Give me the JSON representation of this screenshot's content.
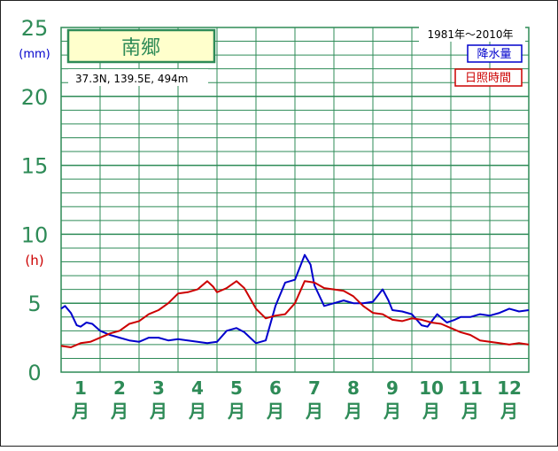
{
  "chart_data": {
    "type": "line",
    "station_name": "南郷",
    "location": "37.3N,  139.5E,  494m",
    "period": "1981年〜2010年",
    "y_unit_precip": "(mm)",
    "y_unit_sunshine": "(h)",
    "ylim": [
      0,
      25
    ],
    "y_ticks": [
      "0",
      "5",
      "10",
      "15",
      "20",
      "25"
    ],
    "x_ticks": [
      {
        "num": "1",
        "unit": "月"
      },
      {
        "num": "2",
        "unit": "月"
      },
      {
        "num": "3",
        "unit": "月"
      },
      {
        "num": "4",
        "unit": "月"
      },
      {
        "num": "5",
        "unit": "月"
      },
      {
        "num": "6",
        "unit": "月"
      },
      {
        "num": "7",
        "unit": "月"
      },
      {
        "num": "8",
        "unit": "月"
      },
      {
        "num": "9",
        "unit": "月"
      },
      {
        "num": "10",
        "unit": "月"
      },
      {
        "num": "11",
        "unit": "月"
      },
      {
        "num": "12",
        "unit": "月"
      }
    ],
    "xlim": [
      0.5,
      12.5
    ],
    "grid": true,
    "legend_position": "top-right",
    "series": [
      {
        "name": "降水量",
        "color": "#0000cc",
        "points": [
          [
            0.5,
            4.6
          ],
          [
            0.6,
            4.8
          ],
          [
            0.75,
            4.3
          ],
          [
            0.9,
            3.4
          ],
          [
            1.0,
            3.3
          ],
          [
            1.15,
            3.6
          ],
          [
            1.3,
            3.5
          ],
          [
            1.5,
            3.0
          ],
          [
            1.75,
            2.7
          ],
          [
            2.0,
            2.5
          ],
          [
            2.25,
            2.3
          ],
          [
            2.5,
            2.2
          ],
          [
            2.75,
            2.5
          ],
          [
            3.0,
            2.5
          ],
          [
            3.25,
            2.3
          ],
          [
            3.5,
            2.4
          ],
          [
            3.75,
            2.3
          ],
          [
            4.0,
            2.2
          ],
          [
            4.25,
            2.1
          ],
          [
            4.5,
            2.2
          ],
          [
            4.75,
            3.0
          ],
          [
            5.0,
            3.2
          ],
          [
            5.2,
            2.9
          ],
          [
            5.5,
            2.1
          ],
          [
            5.75,
            2.3
          ],
          [
            6.0,
            4.8
          ],
          [
            6.25,
            6.5
          ],
          [
            6.5,
            6.7
          ],
          [
            6.75,
            8.5
          ],
          [
            6.9,
            7.8
          ],
          [
            7.0,
            6.3
          ],
          [
            7.25,
            4.8
          ],
          [
            7.5,
            5.0
          ],
          [
            7.75,
            5.2
          ],
          [
            8.0,
            5.0
          ],
          [
            8.25,
            5.0
          ],
          [
            8.5,
            5.1
          ],
          [
            8.75,
            6.0
          ],
          [
            8.9,
            5.2
          ],
          [
            9.0,
            4.5
          ],
          [
            9.25,
            4.4
          ],
          [
            9.5,
            4.2
          ],
          [
            9.75,
            3.4
          ],
          [
            9.9,
            3.3
          ],
          [
            10.15,
            4.2
          ],
          [
            10.4,
            3.6
          ],
          [
            10.6,
            3.8
          ],
          [
            10.75,
            4.0
          ],
          [
            11.0,
            4.0
          ],
          [
            11.25,
            4.2
          ],
          [
            11.5,
            4.1
          ],
          [
            11.75,
            4.3
          ],
          [
            12.0,
            4.6
          ],
          [
            12.25,
            4.4
          ],
          [
            12.5,
            4.5
          ]
        ]
      },
      {
        "name": "日照時間",
        "color": "#cc0000",
        "points": [
          [
            0.5,
            1.9
          ],
          [
            0.75,
            1.8
          ],
          [
            1.0,
            2.1
          ],
          [
            1.25,
            2.2
          ],
          [
            1.5,
            2.5
          ],
          [
            1.75,
            2.8
          ],
          [
            2.0,
            3.0
          ],
          [
            2.25,
            3.5
          ],
          [
            2.5,
            3.7
          ],
          [
            2.75,
            4.2
          ],
          [
            3.0,
            4.5
          ],
          [
            3.25,
            5.0
          ],
          [
            3.5,
            5.7
          ],
          [
            3.75,
            5.8
          ],
          [
            4.0,
            6.0
          ],
          [
            4.25,
            6.6
          ],
          [
            4.4,
            6.2
          ],
          [
            4.5,
            5.8
          ],
          [
            4.75,
            6.1
          ],
          [
            5.0,
            6.6
          ],
          [
            5.2,
            6.1
          ],
          [
            5.5,
            4.6
          ],
          [
            5.75,
            3.9
          ],
          [
            6.0,
            4.1
          ],
          [
            6.25,
            4.2
          ],
          [
            6.5,
            5.0
          ],
          [
            6.75,
            6.6
          ],
          [
            7.0,
            6.5
          ],
          [
            7.25,
            6.1
          ],
          [
            7.5,
            6.0
          ],
          [
            7.75,
            5.9
          ],
          [
            8.0,
            5.5
          ],
          [
            8.25,
            4.8
          ],
          [
            8.5,
            4.3
          ],
          [
            8.75,
            4.2
          ],
          [
            9.0,
            3.8
          ],
          [
            9.25,
            3.7
          ],
          [
            9.5,
            3.9
          ],
          [
            9.75,
            3.8
          ],
          [
            10.0,
            3.6
          ],
          [
            10.25,
            3.5
          ],
          [
            10.5,
            3.2
          ],
          [
            10.75,
            2.9
          ],
          [
            11.0,
            2.7
          ],
          [
            11.25,
            2.3
          ],
          [
            11.5,
            2.2
          ],
          [
            11.75,
            2.1
          ],
          [
            12.0,
            2.0
          ],
          [
            12.25,
            2.1
          ],
          [
            12.5,
            2.0
          ]
        ]
      }
    ]
  },
  "colors": {
    "grid": "#2e8b57",
    "tick_green": "#2e8b57",
    "unit_blue": "#0000cc",
    "unit_red": "#cc0000",
    "station_box_fill": "#ffffcc",
    "station_box_border": "#2e8b57"
  }
}
